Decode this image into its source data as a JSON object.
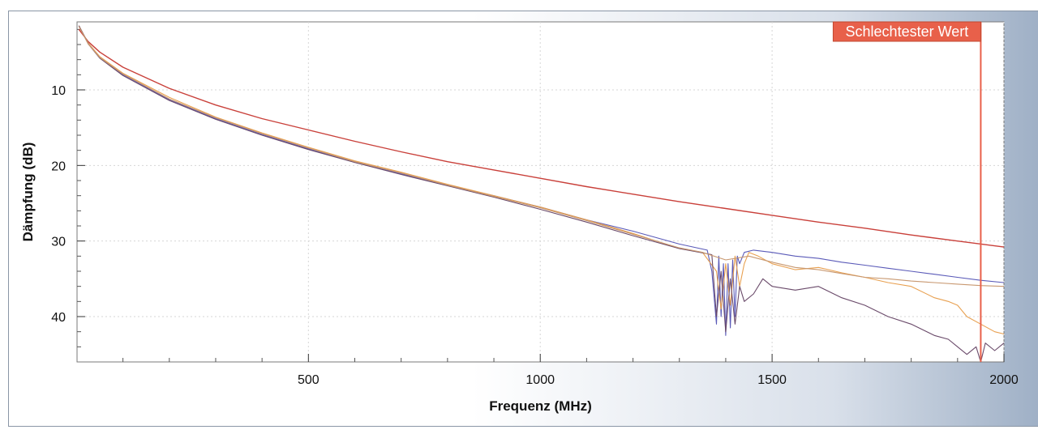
{
  "chart_data": {
    "type": "line",
    "title": "",
    "xlabel": "Frequenz (MHz)",
    "ylabel": "Dämpfung  (dB)",
    "xlim": [
      1,
      2000
    ],
    "ylim": [
      46,
      1
    ],
    "y_inverted": true,
    "x_ticks": [
      500,
      1000,
      1500,
      2000
    ],
    "y_ticks": [
      10,
      20,
      30,
      40
    ],
    "grid": true,
    "marker": {
      "label": "Schlechtester Wert",
      "x": 1950,
      "color": "#e8604a"
    },
    "colors": {
      "limit": "#c9403a",
      "blue": "#5a5ab8",
      "orange": "#e8a050",
      "dark": "#6a4a6a",
      "tan": "#c89870"
    },
    "series": [
      {
        "color_key": "limit",
        "x": [
          5,
          25,
          50,
          100,
          200,
          300,
          400,
          500,
          600,
          700,
          800,
          900,
          1000,
          1100,
          1200,
          1300,
          1400,
          1500,
          1600,
          1700,
          1800,
          1900,
          2000
        ],
        "y": [
          2.0,
          3.6,
          5.0,
          7.0,
          9.8,
          12.0,
          13.8,
          15.3,
          16.8,
          18.2,
          19.5,
          20.6,
          21.7,
          22.8,
          23.8,
          24.8,
          25.7,
          26.6,
          27.5,
          28.3,
          29.2,
          30.0,
          30.8
        ]
      },
      {
        "color_key": "blue",
        "x": [
          5,
          25,
          50,
          100,
          200,
          300,
          400,
          500,
          600,
          700,
          800,
          900,
          1000,
          1100,
          1200,
          1300,
          1360,
          1370,
          1380,
          1385,
          1390,
          1395,
          1400,
          1405,
          1410,
          1415,
          1420,
          1425,
          1430,
          1440,
          1460,
          1500,
          1550,
          1600,
          1650,
          1700,
          1750,
          1800,
          1850,
          1900,
          1950,
          2000
        ],
        "y": [
          1.5,
          3.8,
          5.7,
          8.0,
          11.3,
          13.8,
          15.9,
          17.8,
          19.6,
          21.1,
          22.6,
          24.0,
          25.5,
          27.2,
          28.7,
          30.4,
          31.2,
          34.0,
          41.0,
          32.0,
          40.0,
          33.0,
          42.5,
          33.0,
          41.5,
          32.5,
          40.0,
          32.0,
          33.0,
          31.5,
          31.2,
          31.5,
          32.0,
          32.3,
          32.8,
          33.2,
          33.6,
          34.0,
          34.4,
          34.8,
          35.2,
          35.5
        ]
      },
      {
        "color_key": "orange",
        "x": [
          5,
          25,
          50,
          100,
          200,
          300,
          400,
          500,
          600,
          700,
          800,
          900,
          1000,
          1100,
          1200,
          1300,
          1350,
          1380,
          1390,
          1400,
          1410,
          1420,
          1430,
          1440,
          1450,
          1470,
          1500,
          1550,
          1600,
          1650,
          1700,
          1750,
          1800,
          1850,
          1880,
          1900,
          1920,
          1950,
          1980,
          2000
        ],
        "y": [
          1.5,
          3.8,
          5.6,
          7.8,
          11.0,
          13.6,
          15.7,
          17.6,
          19.4,
          20.9,
          22.5,
          24.0,
          25.5,
          27.2,
          29.0,
          31.0,
          31.5,
          34.0,
          39.0,
          33.0,
          38.5,
          32.0,
          36.0,
          33.0,
          31.5,
          32.0,
          33.0,
          33.8,
          33.5,
          34.2,
          34.8,
          35.5,
          36.0,
          37.5,
          38.0,
          38.5,
          40.0,
          41.0,
          42.0,
          42.3
        ]
      },
      {
        "color_key": "dark",
        "x": [
          5,
          25,
          50,
          100,
          200,
          300,
          400,
          500,
          600,
          700,
          800,
          900,
          1000,
          1100,
          1200,
          1300,
          1370,
          1380,
          1390,
          1400,
          1410,
          1420,
          1430,
          1440,
          1460,
          1480,
          1500,
          1550,
          1600,
          1650,
          1700,
          1750,
          1800,
          1850,
          1880,
          1900,
          1920,
          1940,
          1950,
          1960,
          1980,
          2000
        ],
        "y": [
          1.5,
          3.9,
          5.8,
          8.1,
          11.4,
          13.9,
          16.0,
          17.9,
          19.6,
          21.2,
          22.7,
          24.2,
          25.8,
          27.5,
          29.3,
          31.0,
          31.8,
          40.0,
          34.0,
          42.0,
          35.0,
          41.0,
          36.0,
          38.0,
          37.0,
          35.0,
          36.0,
          36.5,
          36.0,
          37.5,
          38.5,
          40.0,
          41.0,
          42.5,
          43.0,
          44.0,
          45.0,
          44.0,
          46.0,
          43.5,
          44.5,
          43.5
        ]
      },
      {
        "color_key": "tan",
        "x": [
          5,
          25,
          50,
          100,
          200,
          300,
          400,
          500,
          600,
          700,
          800,
          900,
          1000,
          1100,
          1200,
          1300,
          1350,
          1400,
          1450,
          1500,
          1550,
          1600,
          1650,
          1700,
          1750,
          1800,
          1850,
          1900,
          1950,
          2000
        ],
        "y": [
          1.6,
          3.9,
          5.7,
          7.9,
          11.2,
          13.7,
          15.8,
          17.7,
          19.5,
          21.0,
          22.6,
          24.1,
          25.6,
          27.3,
          29.1,
          30.9,
          31.5,
          32.5,
          32.0,
          32.8,
          33.5,
          33.8,
          34.3,
          34.8,
          35.0,
          35.3,
          35.5,
          35.7,
          35.9,
          36.0
        ]
      }
    ]
  }
}
